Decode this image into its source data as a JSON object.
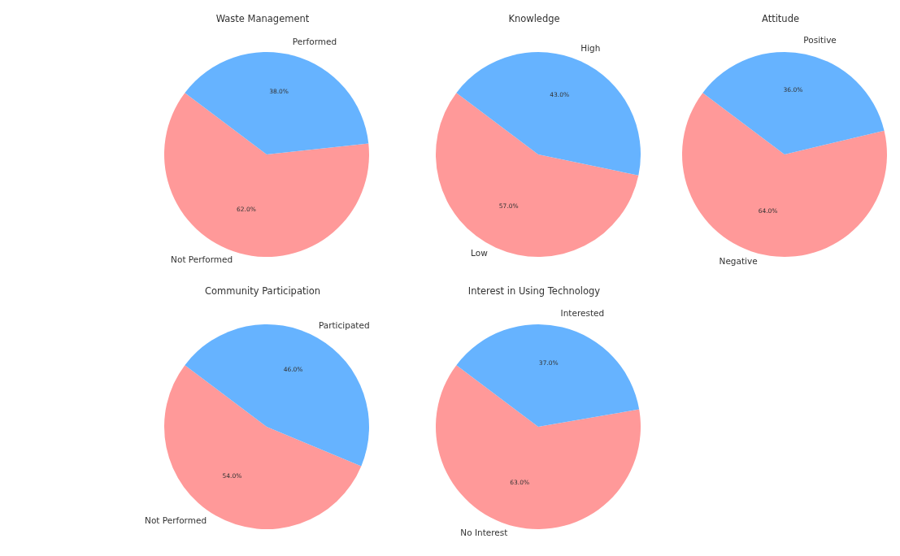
{
  "chart_data": [
    {
      "type": "pie",
      "title": "Waste Management",
      "categories": [
        "Not Performed",
        "Performed"
      ],
      "values": [
        62,
        38
      ],
      "colors": [
        "#ff9999",
        "#66b3ff"
      ],
      "value_labels": [
        "62.0%",
        "38.0%"
      ]
    },
    {
      "type": "pie",
      "title": "Knowledge",
      "categories": [
        "Low",
        "High"
      ],
      "values": [
        57,
        43
      ],
      "colors": [
        "#ff9999",
        "#66b3ff"
      ],
      "value_labels": [
        "57.0%",
        "43.0%"
      ]
    },
    {
      "type": "pie",
      "title": "Attitude",
      "categories": [
        "Negative",
        "Positive"
      ],
      "values": [
        64,
        36
      ],
      "colors": [
        "#ff9999",
        "#66b3ff"
      ],
      "value_labels": [
        "64.0%",
        "36.0%"
      ]
    },
    {
      "type": "pie",
      "title": "Community Participation",
      "categories": [
        "Not Performed",
        "Participated"
      ],
      "values": [
        54,
        46
      ],
      "colors": [
        "#ff9999",
        "#66b3ff"
      ],
      "value_labels": [
        "54.0%",
        "46.0%"
      ]
    },
    {
      "type": "pie",
      "title": "Interest in Using Technology",
      "categories": [
        "No Interest",
        "Interested"
      ],
      "values": [
        63,
        37
      ],
      "colors": [
        "#ff9999",
        "#66b3ff"
      ],
      "value_labels": [
        "63.0%",
        "37.0%"
      ]
    }
  ]
}
